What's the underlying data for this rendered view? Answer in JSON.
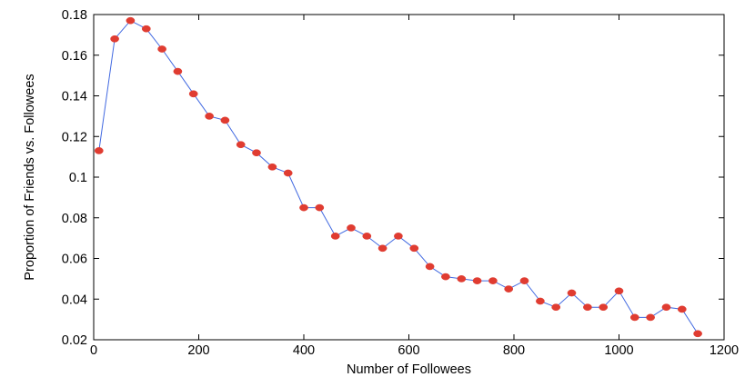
{
  "chart_data": {
    "type": "line",
    "title": "",
    "xlabel": "Number of Followees",
    "ylabel": "Proportion of Friends vs. Followees",
    "xlim": [
      0,
      1200
    ],
    "ylim": [
      0.02,
      0.18
    ],
    "xticks": [
      0,
      200,
      400,
      600,
      800,
      1000,
      1200
    ],
    "yticks": [
      0.02,
      0.04,
      0.06,
      0.08,
      0.1,
      0.12,
      0.14,
      0.16,
      0.18
    ],
    "xtick_labels": [
      "0",
      "200",
      "400",
      "600",
      "800",
      "1000",
      "1200"
    ],
    "ytick_labels": [
      "0.02",
      "0.04",
      "0.06",
      "0.08",
      "0.1",
      "0.12",
      "0.14",
      "0.16",
      "0.18"
    ],
    "grid": false,
    "legend": "none",
    "line_color": "#4169e1",
    "marker_color": "#e03c31",
    "series": [
      {
        "x": [
          10,
          40,
          70,
          100,
          130,
          160,
          190,
          220,
          250,
          280,
          310,
          340,
          370,
          400,
          430,
          460,
          490,
          520,
          550,
          580,
          610,
          640,
          670,
          700,
          730,
          760,
          790,
          820,
          850,
          880,
          910,
          940,
          970,
          1000,
          1030,
          1060,
          1090,
          1120,
          1150
        ],
        "values": [
          0.113,
          0.168,
          0.177,
          0.173,
          0.163,
          0.152,
          0.141,
          0.13,
          0.128,
          0.116,
          0.112,
          0.105,
          0.102,
          0.085,
          0.085,
          0.071,
          0.075,
          0.071,
          0.065,
          0.071,
          0.065,
          0.056,
          0.051,
          0.05,
          0.049,
          0.049,
          0.045,
          0.049,
          0.039,
          0.036,
          0.043,
          0.036,
          0.036,
          0.044,
          0.031,
          0.031,
          0.036,
          0.035,
          0.023
        ]
      }
    ]
  }
}
